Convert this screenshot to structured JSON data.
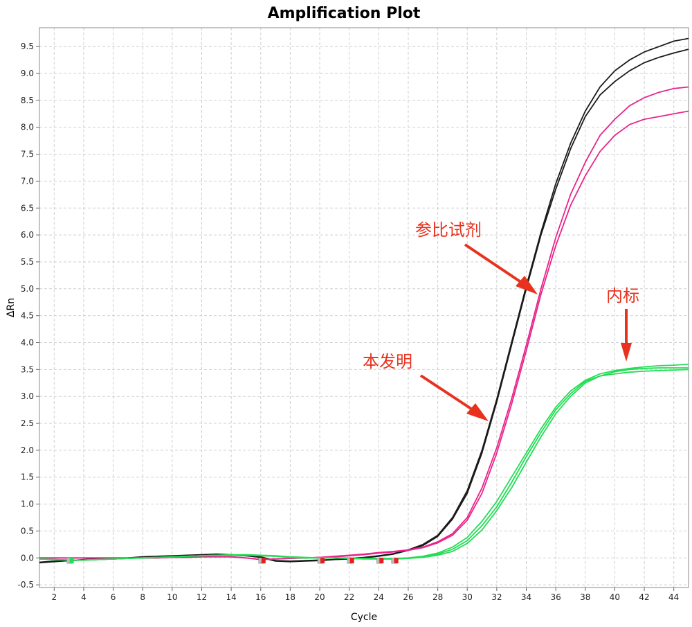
{
  "chart_data": {
    "type": "line",
    "title": "Amplification Plot",
    "xlabel": "Cycle",
    "ylabel": "ΔRn",
    "xlim": [
      1,
      45
    ],
    "ylim": [
      -0.55,
      9.85
    ],
    "xticks": [
      2,
      4,
      6,
      8,
      10,
      12,
      14,
      16,
      18,
      20,
      22,
      24,
      26,
      28,
      30,
      32,
      34,
      36,
      38,
      40,
      42,
      44
    ],
    "yticks": [
      -0.5,
      0.0,
      0.5,
      1.0,
      1.5,
      2.0,
      2.5,
      3.0,
      3.5,
      4.0,
      4.5,
      5.0,
      5.5,
      6.0,
      6.5,
      7.0,
      7.5,
      8.0,
      8.5,
      9.0,
      9.5
    ],
    "grid": true,
    "x": [
      1,
      2,
      3,
      4,
      5,
      6,
      7,
      8,
      9,
      10,
      11,
      12,
      13,
      14,
      15,
      16,
      17,
      18,
      19,
      20,
      21,
      22,
      23,
      24,
      25,
      26,
      27,
      28,
      29,
      30,
      31,
      32,
      33,
      34,
      35,
      36,
      37,
      38,
      39,
      40,
      41,
      42,
      43,
      44,
      45
    ],
    "series": [
      {
        "color": "#1a1a1a",
        "values": [
          -0.08,
          -0.06,
          -0.05,
          -0.03,
          -0.02,
          -0.01,
          0.0,
          0.02,
          0.03,
          0.04,
          0.05,
          0.06,
          0.07,
          0.06,
          0.05,
          0.02,
          -0.05,
          -0.06,
          -0.05,
          -0.04,
          -0.03,
          -0.01,
          0.01,
          0.04,
          0.08,
          0.15,
          0.25,
          0.42,
          0.75,
          1.25,
          2.0,
          2.95,
          4.0,
          5.05,
          6.05,
          6.95,
          7.7,
          8.3,
          8.75,
          9.05,
          9.25,
          9.4,
          9.5,
          9.6,
          9.65
        ]
      },
      {
        "color": "#1a1a1a",
        "values": [
          -0.09,
          -0.07,
          -0.05,
          -0.04,
          -0.03,
          -0.02,
          -0.01,
          0.01,
          0.02,
          0.03,
          0.04,
          0.05,
          0.06,
          0.05,
          0.04,
          0.01,
          -0.06,
          -0.07,
          -0.06,
          -0.05,
          -0.03,
          -0.02,
          0.0,
          0.03,
          0.07,
          0.14,
          0.23,
          0.4,
          0.72,
          1.2,
          1.95,
          2.9,
          3.95,
          5.0,
          6.0,
          6.85,
          7.6,
          8.2,
          8.6,
          8.85,
          9.05,
          9.2,
          9.3,
          9.38,
          9.45
        ]
      },
      {
        "color": "#e8248a",
        "values": [
          0.0,
          0.0,
          0.0,
          0.0,
          0.0,
          0.0,
          0.0,
          0.0,
          0.0,
          0.01,
          0.01,
          0.02,
          0.02,
          0.02,
          0.0,
          -0.03,
          -0.02,
          -0.01,
          0.0,
          0.01,
          0.03,
          0.05,
          0.07,
          0.1,
          0.12,
          0.15,
          0.2,
          0.3,
          0.45,
          0.75,
          1.3,
          2.05,
          2.95,
          3.95,
          5.0,
          5.95,
          6.75,
          7.35,
          7.85,
          8.15,
          8.4,
          8.55,
          8.65,
          8.72,
          8.75
        ]
      },
      {
        "color": "#e8248a",
        "values": [
          0.0,
          0.0,
          0.0,
          0.0,
          0.0,
          0.0,
          0.0,
          0.0,
          0.0,
          0.01,
          0.01,
          0.02,
          0.02,
          0.02,
          0.0,
          -0.03,
          -0.02,
          -0.01,
          0.0,
          0.01,
          0.02,
          0.04,
          0.06,
          0.09,
          0.11,
          0.14,
          0.19,
          0.28,
          0.42,
          0.7,
          1.2,
          1.95,
          2.85,
          3.85,
          4.9,
          5.8,
          6.55,
          7.1,
          7.55,
          7.85,
          8.05,
          8.15,
          8.2,
          8.25,
          8.3
        ]
      },
      {
        "color": "#22dd55",
        "values": [
          -0.02,
          -0.03,
          -0.04,
          -0.04,
          -0.03,
          -0.02,
          -0.01,
          0.0,
          0.01,
          0.02,
          0.03,
          0.04,
          0.05,
          0.06,
          0.06,
          0.05,
          0.04,
          0.02,
          0.01,
          0.0,
          0.0,
          0.0,
          -0.01,
          -0.01,
          -0.01,
          0.0,
          0.03,
          0.09,
          0.2,
          0.38,
          0.68,
          1.05,
          1.5,
          1.95,
          2.4,
          2.8,
          3.1,
          3.3,
          3.42,
          3.48,
          3.52,
          3.55,
          3.57,
          3.58,
          3.6
        ]
      },
      {
        "color": "#22dd55",
        "values": [
          -0.02,
          -0.03,
          -0.04,
          -0.04,
          -0.03,
          -0.02,
          -0.01,
          0.0,
          0.01,
          0.02,
          0.03,
          0.04,
          0.05,
          0.05,
          0.05,
          0.04,
          0.03,
          0.01,
          0.0,
          0.0,
          0.0,
          -0.01,
          -0.01,
          -0.02,
          -0.02,
          -0.01,
          0.02,
          0.07,
          0.16,
          0.32,
          0.6,
          0.95,
          1.4,
          1.88,
          2.33,
          2.75,
          3.05,
          3.28,
          3.38,
          3.42,
          3.45,
          3.47,
          3.48,
          3.49,
          3.5
        ]
      },
      {
        "color": "#22dd55",
        "values": [
          -0.02,
          -0.03,
          -0.04,
          -0.04,
          -0.03,
          -0.02,
          -0.01,
          0.0,
          0.01,
          0.02,
          0.03,
          0.04,
          0.05,
          0.05,
          0.05,
          0.04,
          0.03,
          0.01,
          0.0,
          0.0,
          0.0,
          -0.01,
          -0.02,
          -0.02,
          -0.02,
          -0.01,
          0.01,
          0.05,
          0.12,
          0.27,
          0.52,
          0.88,
          1.3,
          1.78,
          2.25,
          2.68,
          3.0,
          3.25,
          3.38,
          3.46,
          3.5,
          3.52,
          3.53,
          3.53,
          3.53
        ]
      }
    ],
    "annotations": [
      {
        "text": "参比试剂",
        "color": "#e8321e"
      },
      {
        "text": "本发明",
        "color": "#e8321e"
      },
      {
        "text": "内标",
        "color": "#e8321e"
      }
    ],
    "markers": [
      {
        "x": 3,
        "color": "#22dd55"
      },
      {
        "x": 16,
        "color": "#e61e1e"
      },
      {
        "x": 20,
        "color": "#e61e1e"
      },
      {
        "x": 22,
        "color": "#e61e1e"
      },
      {
        "x": 24,
        "color": "#e61e1e"
      },
      {
        "x": 25,
        "color": "#e61e1e"
      }
    ]
  }
}
